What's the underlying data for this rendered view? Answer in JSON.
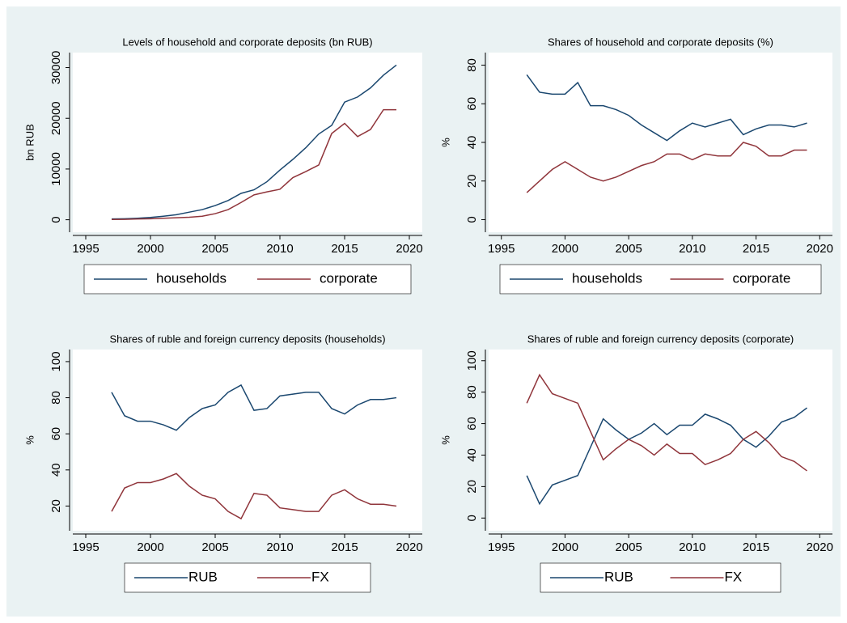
{
  "chart_data": [
    {
      "type": "line",
      "title": "Levels of household and corporate deposits (bn RUB)",
      "y_label": "bn RUB",
      "x": [
        1997,
        1998,
        1999,
        2000,
        2001,
        2002,
        2003,
        2004,
        2005,
        2006,
        2007,
        2008,
        2009,
        2010,
        2011,
        2012,
        2013,
        2014,
        2015,
        2016,
        2017,
        2018,
        2019
      ],
      "series": [
        {
          "name": "households",
          "color": "#1a476f",
          "values": [
            150,
            200,
            300,
            450,
            700,
            1000,
            1500,
            2000,
            2800,
            3800,
            5200,
            5900,
            7500,
            9800,
            11900,
            14200,
            16900,
            18600,
            23200,
            24200,
            26000,
            28500,
            30500
          ]
        },
        {
          "name": "corporate",
          "color": "#90353b",
          "values": [
            50,
            80,
            150,
            200,
            300,
            400,
            500,
            700,
            1200,
            2000,
            3400,
            4900,
            5500,
            6000,
            8300,
            9500,
            10800,
            17000,
            19000,
            16400,
            17800,
            21700,
            21700
          ]
        }
      ],
      "xlim": [
        1994,
        2021
      ],
      "xticks": [
        1995,
        2000,
        2005,
        2010,
        2015,
        2020
      ],
      "ylim": [
        -1500,
        32000
      ],
      "yticks": [
        0,
        10000,
        20000,
        30000
      ],
      "grid": false,
      "legend": "bottom"
    },
    {
      "type": "line",
      "title": "Shares of household and corporate deposits (%)",
      "y_label": "%",
      "x": [
        1997,
        1998,
        1999,
        2000,
        2001,
        2002,
        2003,
        2004,
        2005,
        2006,
        2007,
        2008,
        2009,
        2010,
        2011,
        2012,
        2013,
        2014,
        2015,
        2016,
        2017,
        2018,
        2019
      ],
      "series": [
        {
          "name": "households",
          "color": "#1a476f",
          "values": [
            75,
            66,
            65,
            65,
            71,
            59,
            59,
            57,
            54,
            49,
            45,
            41,
            46,
            50,
            48,
            50,
            52,
            44,
            47,
            49,
            49,
            48,
            50
          ]
        },
        {
          "name": "corporate",
          "color": "#90353b",
          "values": [
            14,
            20,
            26,
            30,
            26,
            22,
            20,
            22,
            25,
            28,
            30,
            34,
            34,
            31,
            34,
            33,
            33,
            40,
            38,
            33,
            33,
            36,
            36
          ]
        }
      ],
      "xlim": [
        1994,
        2021
      ],
      "xticks": [
        1995,
        2000,
        2005,
        2010,
        2015,
        2020
      ],
      "ylim": [
        -4,
        84
      ],
      "yticks": [
        0,
        20,
        40,
        60,
        80
      ],
      "grid": false,
      "legend": "bottom"
    },
    {
      "type": "line",
      "title": "Shares of ruble and foreign currency deposits (households)",
      "y_label": "%",
      "x": [
        1997,
        1998,
        1999,
        2000,
        2001,
        2002,
        2003,
        2004,
        2005,
        2006,
        2007,
        2008,
        2009,
        2010,
        2011,
        2012,
        2013,
        2014,
        2015,
        2016,
        2017,
        2018,
        2019
      ],
      "series": [
        {
          "name": "RUB",
          "color": "#1a476f",
          "values": [
            83,
            70,
            67,
            67,
            65,
            62,
            69,
            74,
            76,
            83,
            87,
            73,
            74,
            81,
            82,
            83,
            83,
            74,
            71,
            76,
            79,
            79,
            80
          ]
        },
        {
          "name": "FX",
          "color": "#90353b",
          "values": [
            17,
            30,
            33,
            33,
            35,
            38,
            31,
            26,
            24,
            17,
            13,
            27,
            26,
            19,
            18,
            17,
            17,
            26,
            29,
            24,
            21,
            21,
            20
          ]
        }
      ],
      "xlim": [
        1994,
        2021
      ],
      "xticks": [
        1995,
        2000,
        2005,
        2010,
        2015,
        2020
      ],
      "ylim": [
        9,
        104
      ],
      "yticks": [
        20,
        40,
        60,
        80,
        100
      ],
      "grid": false,
      "legend": "bottom"
    },
    {
      "type": "line",
      "title": "Shares of ruble and foreign currency deposits (corporate)",
      "y_label": "%",
      "x": [
        1997,
        1998,
        1999,
        2000,
        2001,
        2002,
        2003,
        2004,
        2005,
        2006,
        2007,
        2008,
        2009,
        2010,
        2011,
        2012,
        2013,
        2014,
        2015,
        2016,
        2017,
        2018,
        2019
      ],
      "series": [
        {
          "name": "RUB",
          "color": "#1a476f",
          "values": [
            27,
            9,
            21,
            24,
            27,
            45,
            63,
            56,
            50,
            54,
            60,
            53,
            59,
            59,
            66,
            63,
            59,
            50,
            45,
            52,
            61,
            64,
            70
          ]
        },
        {
          "name": "FX",
          "color": "#90353b",
          "values": [
            73,
            91,
            79,
            76,
            73,
            55,
            37,
            44,
            50,
            46,
            40,
            47,
            41,
            41,
            34,
            37,
            41,
            50,
            55,
            48,
            39,
            36,
            30
          ]
        }
      ],
      "xlim": [
        1994,
        2021
      ],
      "xticks": [
        1995,
        2000,
        2005,
        2010,
        2015,
        2020
      ],
      "ylim": [
        -5,
        104
      ],
      "yticks": [
        0,
        20,
        40,
        60,
        80,
        100
      ],
      "grid": false,
      "legend": "bottom"
    }
  ]
}
